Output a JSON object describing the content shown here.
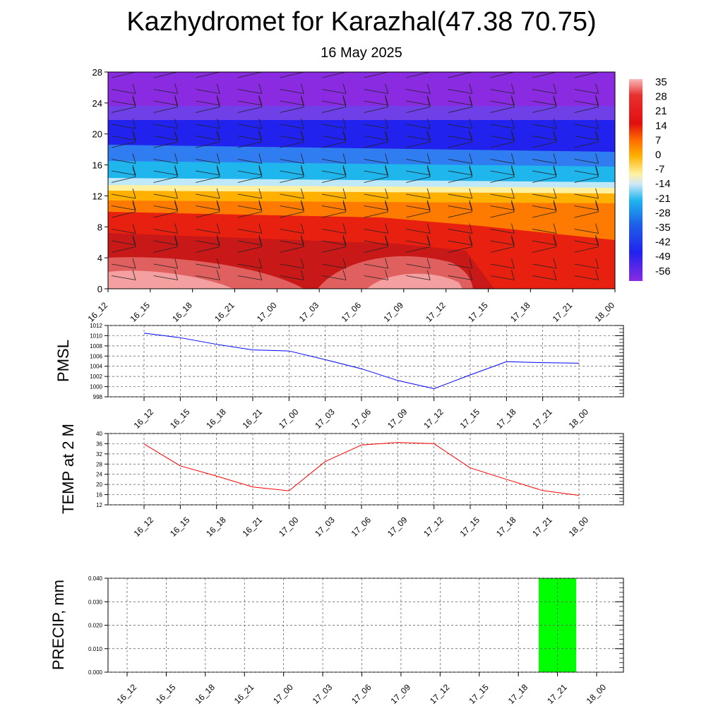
{
  "header": {
    "title": "Kazhydromet for Karazhal(47.38 70.75)",
    "date": "16 May 2025"
  },
  "chart_data": [
    {
      "type": "heatmap",
      "name": "temperature-wind-cross-section",
      "title": "",
      "ylim": [
        0,
        28
      ],
      "yticks": [
        "0",
        "4",
        "8",
        "12",
        "16",
        "20",
        "24",
        "28"
      ],
      "xticks": [
        "16_12",
        "16_15",
        "16_18",
        "16_21",
        "17_00",
        "17_03",
        "17_06",
        "17_09",
        "17_12",
        "17_15",
        "17_18",
        "17_21",
        "18_00"
      ],
      "colorbar": {
        "labels": [
          "35",
          "28",
          "21",
          "14",
          "7",
          "0",
          "-7",
          "-14",
          "-21",
          "-28",
          "-35",
          "-42",
          "-49",
          "-56"
        ]
      },
      "colors": {
        "purple": "#8a2be2",
        "blue": "#2222ee",
        "cyan": "#1fb6ee",
        "yellow": "#fff1a0",
        "orange": "#ff8a00",
        "red": "#e01010",
        "pink": "#f4a0a0"
      }
    },
    {
      "type": "line",
      "ylabel": "PMSL",
      "ylim": [
        998,
        1012
      ],
      "yticks": [
        "998",
        "1000",
        "1002",
        "1004",
        "1006",
        "1008",
        "1010",
        "1012"
      ],
      "categories": [
        "16_12",
        "16_15",
        "16_18",
        "16_21",
        "17_00",
        "17_03",
        "17_06",
        "17_09",
        "17_12",
        "17_15",
        "17_18",
        "17_21",
        "18_00"
      ],
      "values": [
        1010.5,
        1009.6,
        1008.3,
        1007.2,
        1007.0,
        1005.3,
        1003.5,
        1001.2,
        999.6,
        1002.3,
        1004.9,
        1004.7,
        1004.6
      ],
      "color": "#0000ff"
    },
    {
      "type": "line",
      "ylabel": "TEMP at 2 M",
      "ylim": [
        12,
        40
      ],
      "yticks": [
        "12",
        "16",
        "20",
        "24",
        "28",
        "32",
        "36",
        "40"
      ],
      "categories": [
        "16_12",
        "16_15",
        "16_18",
        "16_21",
        "17_00",
        "17_03",
        "17_06",
        "17_09",
        "17_12",
        "17_15",
        "17_18",
        "17_21",
        "18_00"
      ],
      "values": [
        35.9,
        27.3,
        23.3,
        19.0,
        17.5,
        29.0,
        35.5,
        36.5,
        36.0,
        26.5,
        22.0,
        17.6,
        15.7
      ],
      "color": "#ff0000"
    },
    {
      "type": "bar",
      "ylabel": "PRECIP, mm",
      "ylim": [
        0,
        0.04
      ],
      "yticks": [
        "0.000",
        "0.010",
        "0.020",
        "0.030",
        "0.040"
      ],
      "categories": [
        "16_12",
        "16_15",
        "16_18",
        "16_21",
        "17_00",
        "17_03",
        "17_06",
        "17_09",
        "17_12",
        "17_15",
        "17_18",
        "17_21",
        "18_00"
      ],
      "values": [
        0,
        0,
        0,
        0,
        0,
        0,
        0,
        0,
        0,
        0,
        0,
        0.04,
        0
      ],
      "color": "#00ff00"
    }
  ]
}
